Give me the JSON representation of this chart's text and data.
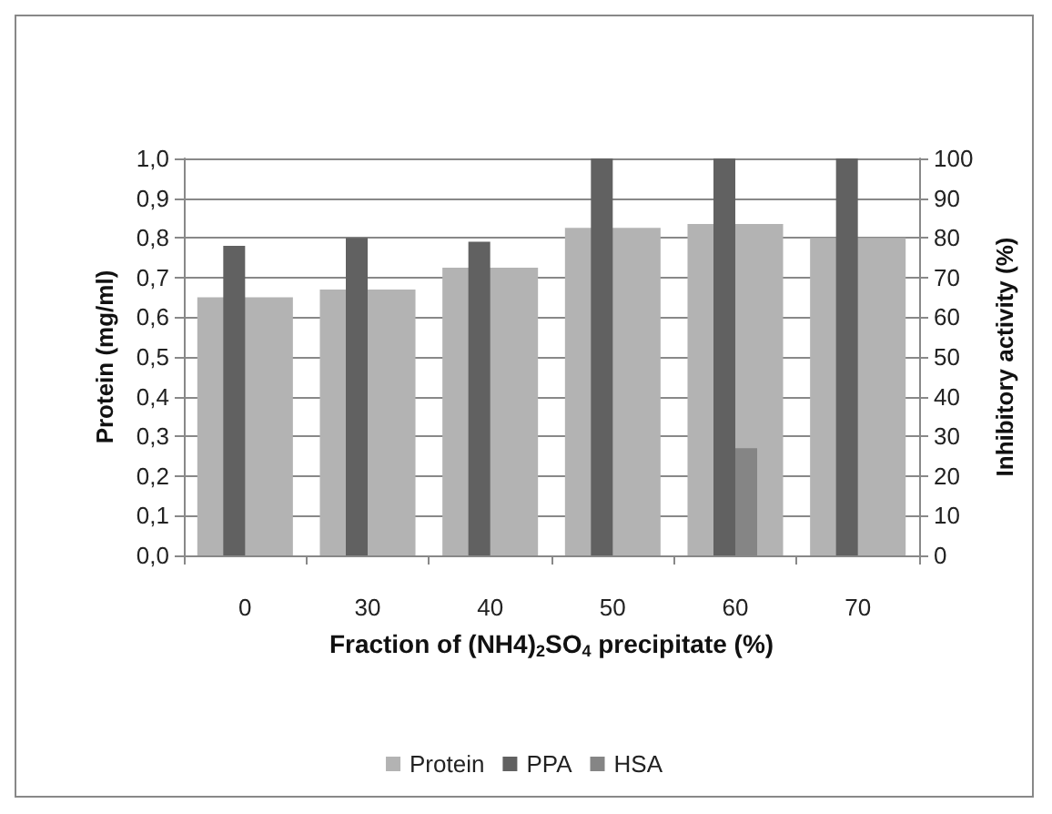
{
  "chart_data": {
    "type": "bar",
    "xlabel": "Fraction of (NH4)$_{2}$SO$_{4}$ precipitate (%)",
    "ylabel": "Protein (mg/ml)",
    "y2label": "Inhibitory activity (%)",
    "categories": [
      "0",
      "30",
      "40",
      "50",
      "60",
      "70"
    ],
    "series": [
      {
        "name": "Protein",
        "color": "#b3b3b3",
        "values": [
          0.65,
          0.67,
          0.725,
          0.825,
          0.835,
          0.8
        ]
      },
      {
        "name": "PPA",
        "color": "#616161",
        "axis": "y2",
        "values": [
          78,
          80,
          79,
          100,
          100,
          100
        ]
      },
      {
        "name": "HSA",
        "color": "#858585",
        "axis": "y2",
        "values": [
          null,
          null,
          null,
          null,
          27,
          null
        ]
      }
    ],
    "ylim": [
      0,
      1
    ],
    "yticks": [
      {
        "value": 0,
        "label": "0,0"
      },
      {
        "value": 0.1,
        "label": "0,1"
      },
      {
        "value": 0.2,
        "label": "0,2"
      },
      {
        "value": 0.3,
        "label": "0,3"
      },
      {
        "value": 0.4,
        "label": "0,4"
      },
      {
        "value": 0.5,
        "label": "0,5"
      },
      {
        "value": 0.6,
        "label": "0,6"
      },
      {
        "value": 0.7,
        "label": "0,7"
      },
      {
        "value": 0.8,
        "label": "0,8"
      },
      {
        "value": 0.9,
        "label": "0,9"
      },
      {
        "value": 1,
        "label": "1,0"
      }
    ],
    "y2lim": [
      0,
      100
    ],
    "y2ticks": [
      0,
      10,
      20,
      30,
      40,
      50,
      60,
      70,
      80,
      90,
      100
    ],
    "grid": "y",
    "legend": "bottom"
  }
}
